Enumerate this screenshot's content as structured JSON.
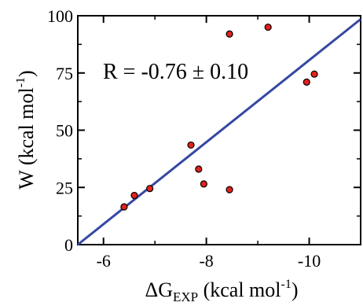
{
  "chart_data": {
    "type": "scatter",
    "xlabel": {
      "prefix": "ΔG",
      "subscript": "EXP",
      "mid": " (kcal mol",
      "superscript": "-1",
      "suffix": ")"
    },
    "ylabel": {
      "main": "W (kcal mol",
      "superscript": "-1",
      "suffix": ")"
    },
    "xlim": [
      -5.5,
      -11.0
    ],
    "ylim": [
      0,
      100
    ],
    "x_axis_reversed": true,
    "x_ticks": [
      -6,
      -8,
      -10
    ],
    "x_tick_labels": [
      "-6",
      "-8",
      "-10"
    ],
    "y_ticks": [
      0,
      25,
      50,
      75,
      100
    ],
    "y_tick_labels": [
      "0",
      "25",
      "50",
      "75",
      "100"
    ],
    "grid": false,
    "annotation": "R = -0.76 ± 0.10",
    "points": [
      {
        "x": -6.4,
        "y": 16.5
      },
      {
        "x": -6.6,
        "y": 21.5
      },
      {
        "x": -6.9,
        "y": 24.5
      },
      {
        "x": -7.7,
        "y": 43.5
      },
      {
        "x": -7.85,
        "y": 33
      },
      {
        "x": -7.95,
        "y": 26.5
      },
      {
        "x": -8.45,
        "y": 92
      },
      {
        "x": -8.45,
        "y": 24
      },
      {
        "x": -9.2,
        "y": 95
      },
      {
        "x": -9.95,
        "y": 71
      },
      {
        "x": -10.1,
        "y": 74.5
      }
    ],
    "fit_line": {
      "x": [
        -5.5,
        -11.0
      ],
      "y": [
        0,
        98.5
      ]
    },
    "colors": {
      "point_fill": "#e3211c",
      "point_stroke": "#000000",
      "line": "#3548a3"
    }
  }
}
